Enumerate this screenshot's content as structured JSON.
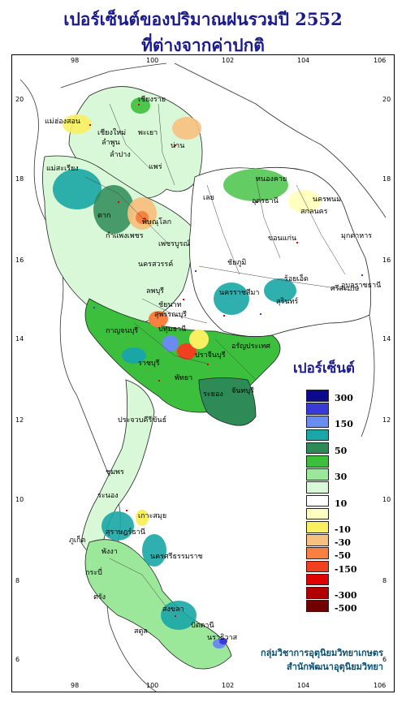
{
  "title": {
    "line1": "เปอร์เซ็นต์ของปริมาณฝนรวมปี 2552",
    "line2": "ที่ต่างจากค่าปกติ"
  },
  "axes": {
    "top_ticks": [
      "98",
      "100",
      "102",
      "104",
      "106"
    ],
    "bottom_ticks": [
      "98",
      "100",
      "102",
      "104",
      "106"
    ],
    "left_ticks": [
      "20",
      "18",
      "16",
      "14",
      "12",
      "10",
      "8",
      "6"
    ],
    "right_ticks": [
      "20",
      "18",
      "16",
      "14",
      "12",
      "10",
      "8",
      "6"
    ]
  },
  "legend": {
    "title": "เปอร์เซ็นต์",
    "colors": [
      "#0a0a8a",
      "#3a3ad8",
      "#6a8cf0",
      "#1aa6a6",
      "#2e8b57",
      "#3cbf3c",
      "#9be89b",
      "#d8f8d8",
      "#ffffff",
      "#ffffc0",
      "#f8f060",
      "#f8c080",
      "#f88040",
      "#f04020",
      "#e00000",
      "#b00000",
      "#700000"
    ],
    "labels": [
      "300",
      "150",
      "50",
      "30",
      "10",
      "-10",
      "-30",
      "-50",
      "-150",
      "-300",
      "-500"
    ]
  },
  "places": [
    "เชียงราย",
    "แม่ฮ่องสอน",
    "เชียงใหม่",
    "พะเยา",
    "น่าน",
    "ลำพูน",
    "ลำปาง",
    "แพร่",
    "แม่สะเรียง",
    "หนองคาย",
    "นครพนม",
    "อุดรธานี",
    "เลย",
    "สกลนคร",
    "ตาก",
    "พิษณุโลก",
    "มุกดาหาร",
    "กำแพงเพชร",
    "ขอนแก่น",
    "เพชรบูรณ์",
    "นครสวรรค์",
    "ชัยภูมิ",
    "อุบลราชธานี",
    "ร้อยเอ็ด",
    "ศรีสะเกษ",
    "ลพบุรี",
    "สุรินทร์",
    "นครราชสีมา",
    "สุพรรณบุรี",
    "ชัยนาท",
    "กาญจนบุรี",
    "ปทุมธานี",
    "อรัญประเทศ",
    "ปราจีนบุรี",
    "ราชบุรี",
    "พัทยา",
    "ระยอง",
    "จันทบุรี",
    "ประจวบคีรีขันธ์",
    "ชุมพร",
    "ระนอง",
    "เกาะสมุย",
    "สุราษฎร์ธานี",
    "ภูเก็ต",
    "พังงา",
    "นครศรีธรรมราช",
    "กระบี่",
    "ตรัง",
    "สงขลา",
    "ปัตตานี",
    "นราธิวาส",
    "สตูล"
  ],
  "credit": {
    "line1": "กลุ่มวิชาการอุตุนิยมวิทยาเกษตร",
    "line2": "สำนักพัฒนาอุตุนิยมวิทยา"
  }
}
